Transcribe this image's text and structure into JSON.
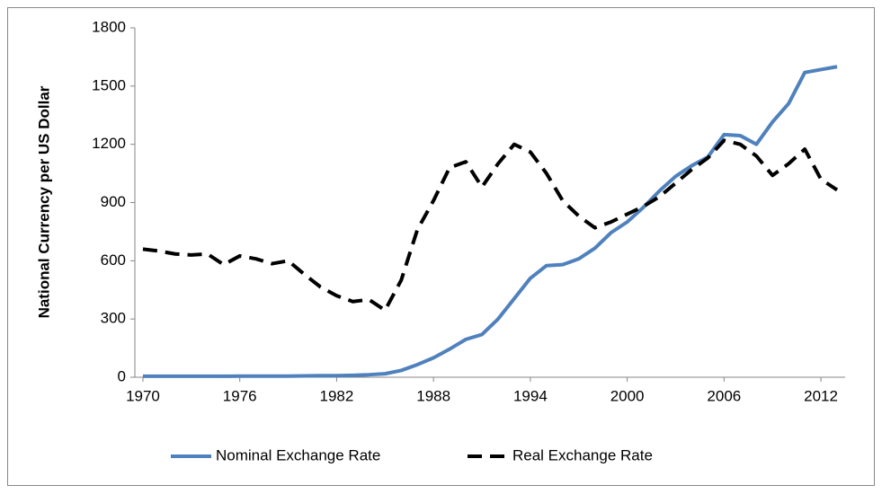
{
  "chart_data": {
    "type": "line",
    "y_label": "National Currency per US Dollar",
    "x": [
      1970,
      1971,
      1972,
      1973,
      1974,
      1975,
      1976,
      1977,
      1978,
      1979,
      1980,
      1981,
      1982,
      1983,
      1984,
      1985,
      1986,
      1987,
      1988,
      1989,
      1990,
      1991,
      1992,
      1993,
      1994,
      1995,
      1996,
      1997,
      1998,
      1999,
      2000,
      2001,
      2002,
      2003,
      2004,
      2005,
      2006,
      2007,
      2008,
      2009,
      2010,
      2011,
      2012,
      2013
    ],
    "xlim": [
      1969.5,
      2013.5
    ],
    "xticks": [
      1970,
      1976,
      1982,
      1988,
      1994,
      2000,
      2006,
      2012
    ],
    "ylim": [
      0,
      1800
    ],
    "yticks": [
      0,
      300,
      600,
      900,
      1200,
      1500,
      1800
    ],
    "legend": "bottom",
    "series": [
      {
        "name": "Nominal Exchange Rate",
        "color": "#4f81bd",
        "dash": "solid",
        "values": [
          5,
          5,
          5,
          5,
          5,
          5,
          6,
          6,
          6,
          6,
          7,
          8,
          8,
          10,
          13,
          18,
          35,
          65,
          100,
          145,
          195,
          220,
          300,
          405,
          510,
          575,
          580,
          610,
          665,
          745,
          800,
          875,
          960,
          1035,
          1090,
          1135,
          1250,
          1245,
          1200,
          1315,
          1410,
          1570,
          1585,
          1600
        ]
      },
      {
        "name": "Real Exchange Rate",
        "color": "#000000",
        "dash": "dashed",
        "values": [
          660,
          650,
          635,
          630,
          635,
          580,
          625,
          610,
          585,
          600,
          530,
          465,
          420,
          390,
          400,
          345,
          500,
          760,
          910,
          1080,
          1110,
          980,
          1100,
          1200,
          1160,
          1050,
          910,
          830,
          770,
          800,
          840,
          880,
          930,
          1000,
          1070,
          1130,
          1220,
          1200,
          1140,
          1040,
          1100,
          1175,
          1020,
          965
        ]
      }
    ]
  }
}
